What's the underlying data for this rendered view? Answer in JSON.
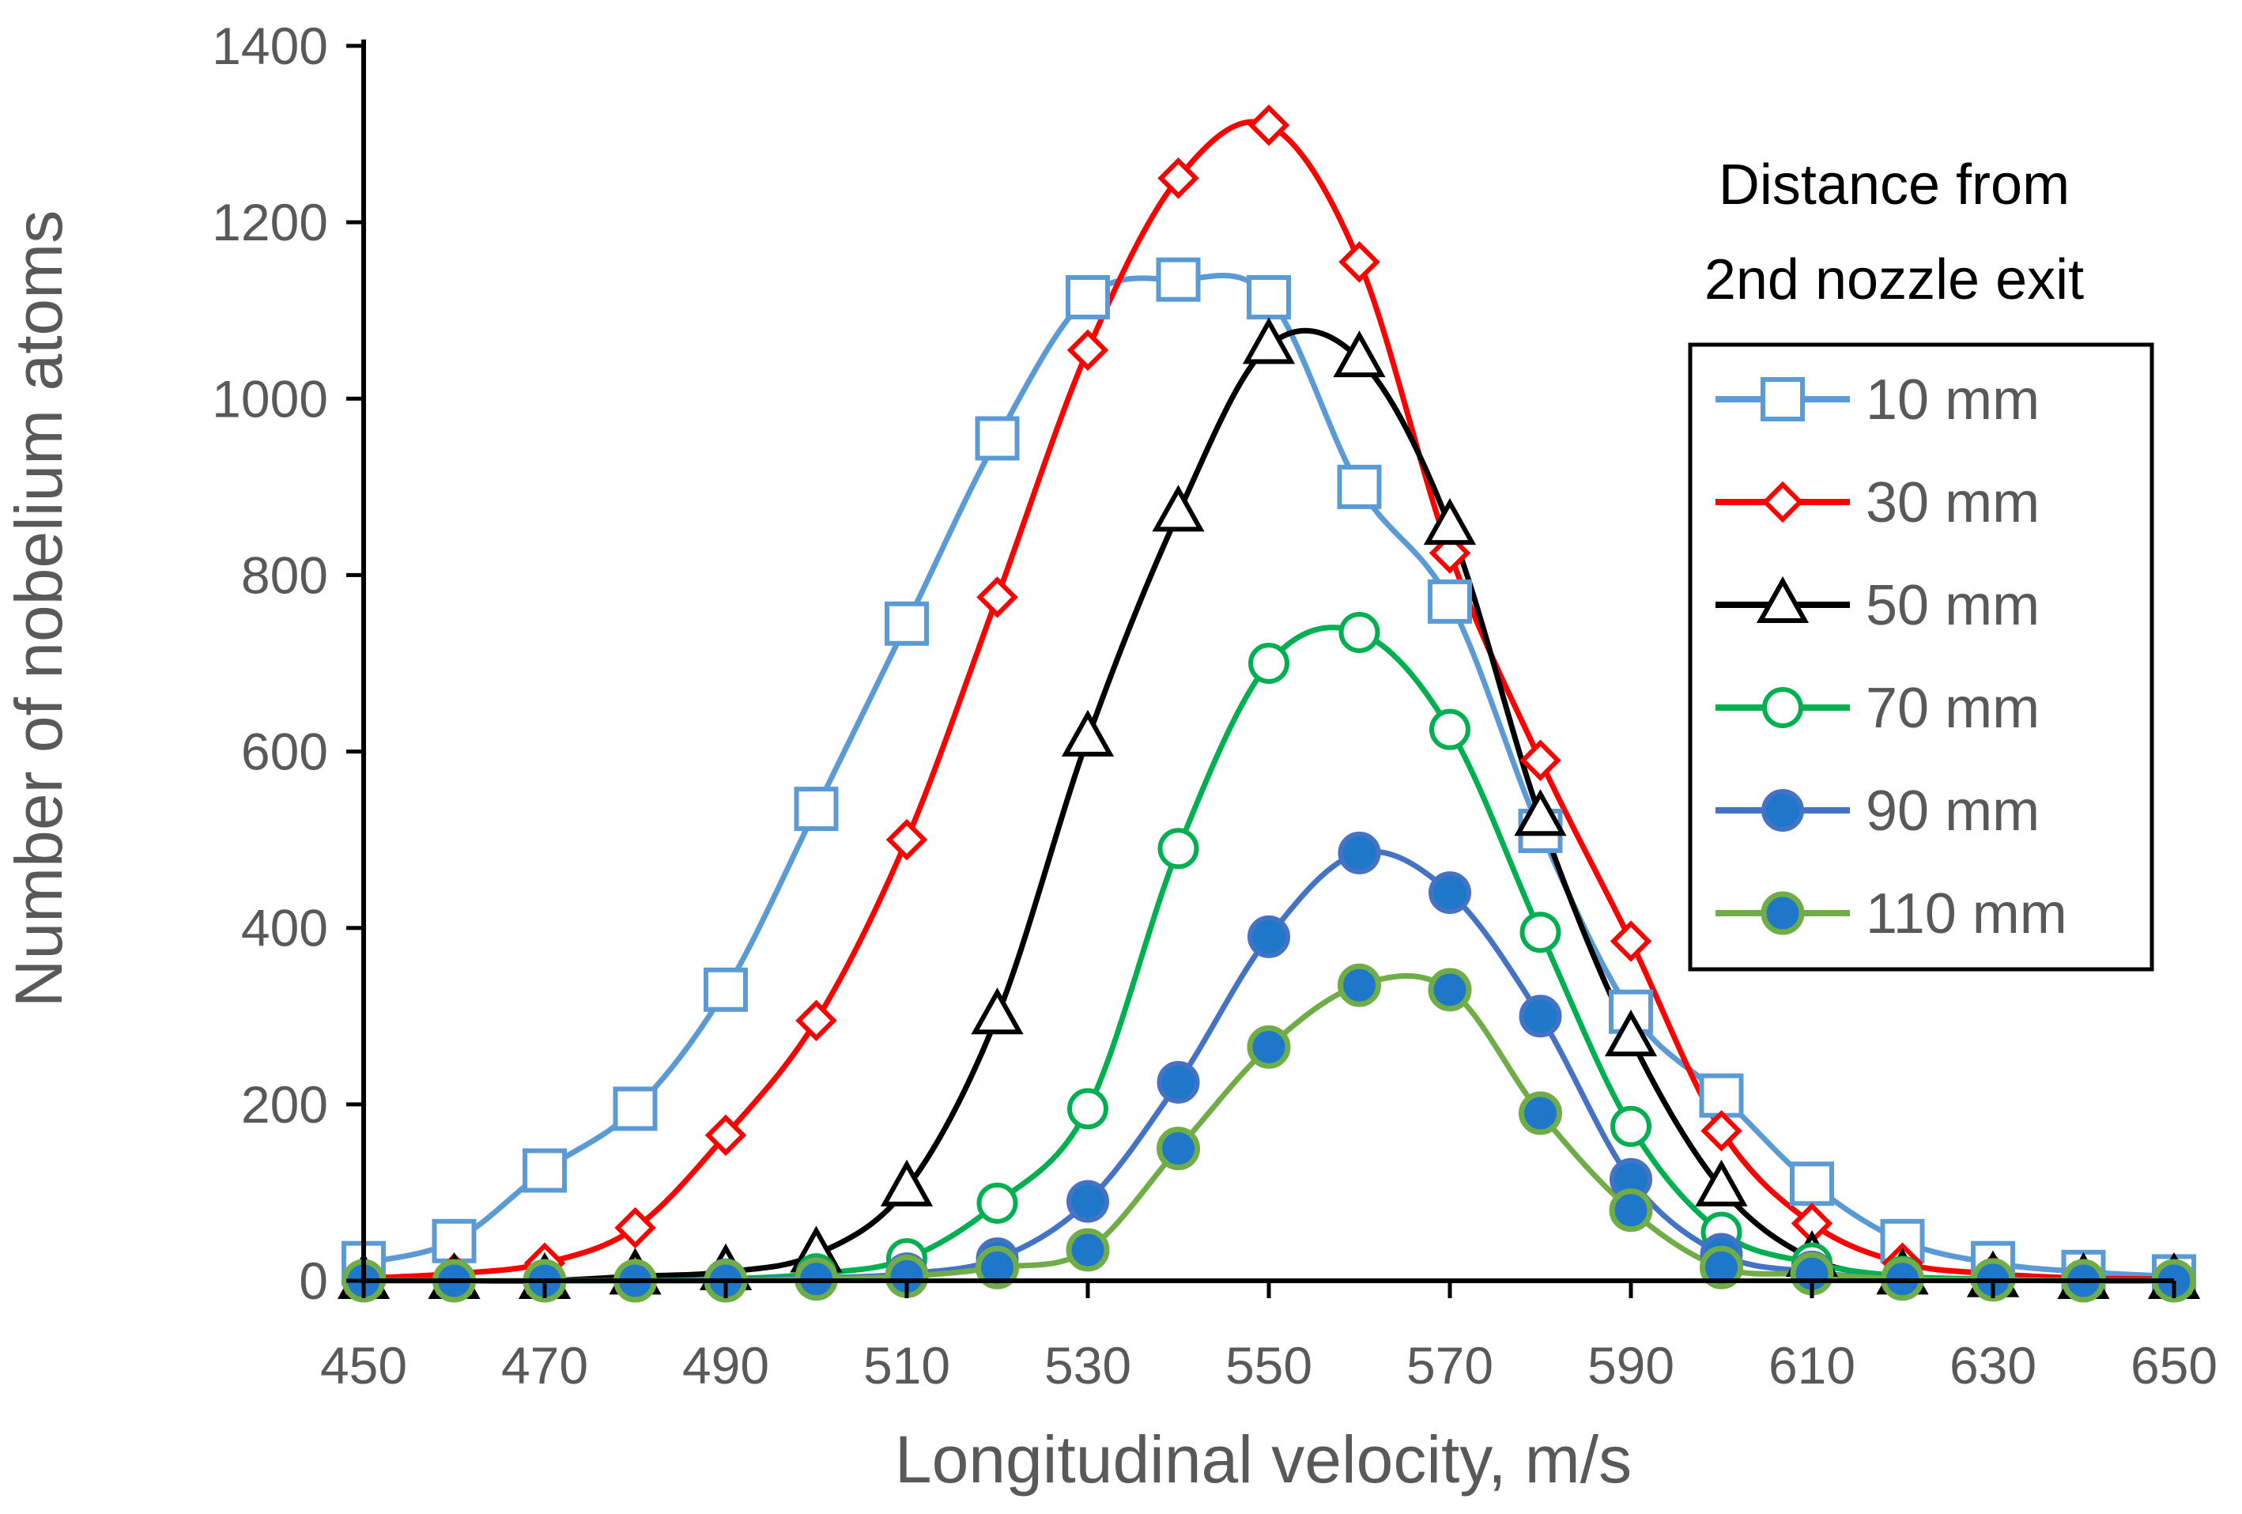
{
  "chart_data": {
    "type": "line",
    "xlabel": "Longitudinal velocity, m/s",
    "ylabel": "Number of nobelium atoms",
    "xlim": [
      450,
      650
    ],
    "ylim": [
      0,
      1400
    ],
    "xticks": [
      "450",
      "470",
      "490",
      "510",
      "530",
      "550",
      "570",
      "590",
      "610",
      "630",
      "650"
    ],
    "yticks": [
      "0",
      "200",
      "400",
      "600",
      "800",
      "1000",
      "1200",
      "1400"
    ],
    "grid": false,
    "legend_placement": "right",
    "legend_title": [
      "Distance from",
      "2nd nozzle exit"
    ],
    "x": [
      450,
      460,
      470,
      480,
      490,
      500,
      510,
      520,
      530,
      540,
      550,
      560,
      570,
      580,
      590,
      600,
      610,
      620,
      630,
      640,
      650
    ],
    "series": [
      {
        "name": "10 mm",
        "color": "#5B9BD5",
        "marker": "square-open",
        "values": [
          20,
          45,
          125,
          195,
          330,
          535,
          745,
          955,
          1115,
          1135,
          1115,
          900,
          770,
          510,
          305,
          210,
          110,
          45,
          20,
          10,
          5
        ]
      },
      {
        "name": "30 mm",
        "color": "#FF0000",
        "marker": "diamond-open",
        "values": [
          3,
          8,
          20,
          60,
          165,
          295,
          500,
          775,
          1055,
          1250,
          1310,
          1155,
          825,
          590,
          385,
          170,
          65,
          20,
          8,
          3,
          2
        ]
      },
      {
        "name": "50 mm",
        "color": "#000000",
        "marker": "triangle-open",
        "values": [
          0,
          0,
          0,
          5,
          10,
          30,
          105,
          300,
          615,
          870,
          1060,
          1045,
          855,
          525,
          275,
          105,
          25,
          5,
          2,
          0,
          0
        ]
      },
      {
        "name": "70 mm",
        "color": "#00B050",
        "marker": "circle-open",
        "values": [
          0,
          0,
          0,
          0,
          2,
          8,
          25,
          88,
          195,
          490,
          700,
          735,
          625,
          395,
          175,
          55,
          20,
          5,
          2,
          0,
          0
        ]
      },
      {
        "name": "90 mm",
        "color": "#4472C4",
        "marker": "circle-filled",
        "values": [
          0,
          0,
          0,
          0,
          1,
          3,
          8,
          25,
          90,
          225,
          390,
          485,
          440,
          300,
          115,
          30,
          10,
          2,
          1,
          0,
          0
        ]
      },
      {
        "name": "110 mm",
        "color": "#70AD47",
        "marker": "circle-filled-blue",
        "values": [
          0,
          0,
          0,
          0,
          0,
          2,
          5,
          15,
          35,
          150,
          265,
          335,
          330,
          190,
          80,
          15,
          8,
          2,
          1,
          0,
          0
        ]
      }
    ]
  }
}
